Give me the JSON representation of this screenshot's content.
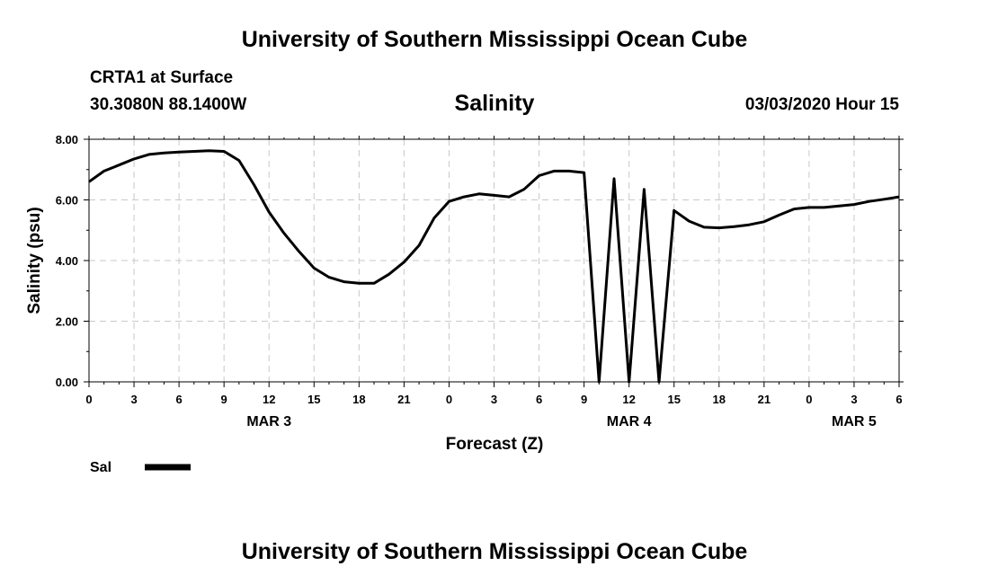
{
  "page": {
    "title_top": "University of Southern Mississippi Ocean Cube",
    "station": "CRTA1 at Surface",
    "coords": "30.3080N 88.1400W",
    "variable": "Salinity",
    "datetime": "03/03/2020 Hour 15",
    "title_bottom": "University of Southern Mississippi Ocean Cube"
  },
  "chart_data": {
    "type": "line",
    "title": "Salinity",
    "xlabel": "Forecast (Z)",
    "ylabel": "Salinity (psu)",
    "xlim": [
      0,
      54
    ],
    "ylim": [
      0,
      8
    ],
    "grid": true,
    "xticks": [
      "0",
      "3",
      "6",
      "9",
      "12",
      "15",
      "18",
      "21",
      "0",
      "3",
      "6",
      "9",
      "12",
      "15",
      "18",
      "21",
      "0",
      "3",
      "6"
    ],
    "yticks": [
      "0.00",
      "2.00",
      "4.00",
      "6.00",
      "8.00"
    ],
    "date_labels": [
      {
        "label": "MAR 3",
        "at_hour": 12
      },
      {
        "label": "MAR 4",
        "at_hour": 36
      },
      {
        "label": "MAR 5",
        "at_hour": 51
      }
    ],
    "legend": {
      "placement": "bottom-left",
      "entries": [
        "Sal"
      ]
    },
    "series": [
      {
        "name": "Sal",
        "color": "#000000",
        "x": [
          0,
          1,
          2,
          3,
          4,
          5,
          6,
          7,
          8,
          9,
          10,
          11,
          12,
          13,
          14,
          15,
          16,
          17,
          18,
          19,
          20,
          21,
          22,
          23,
          24,
          25,
          26,
          27,
          28,
          29,
          30,
          31,
          32,
          33,
          34,
          35,
          36,
          37,
          38,
          39,
          40,
          41,
          42,
          43,
          44,
          45,
          46,
          47,
          48,
          49,
          50,
          51,
          52,
          53,
          54
        ],
        "y": [
          6.6,
          6.95,
          7.15,
          7.35,
          7.5,
          7.55,
          7.58,
          7.6,
          7.62,
          7.6,
          7.3,
          6.5,
          5.6,
          4.9,
          4.3,
          3.75,
          3.45,
          3.3,
          3.25,
          3.25,
          3.55,
          3.95,
          4.5,
          5.4,
          5.95,
          6.1,
          6.2,
          6.15,
          6.1,
          6.35,
          6.8,
          6.95,
          6.95,
          6.9,
          0.0,
          6.7,
          0.0,
          6.35,
          0.0,
          5.65,
          5.3,
          5.1,
          5.08,
          5.12,
          5.18,
          5.28,
          5.5,
          5.7,
          5.75,
          5.75,
          5.8,
          5.85,
          5.95,
          6.02,
          6.1
        ]
      }
    ]
  }
}
